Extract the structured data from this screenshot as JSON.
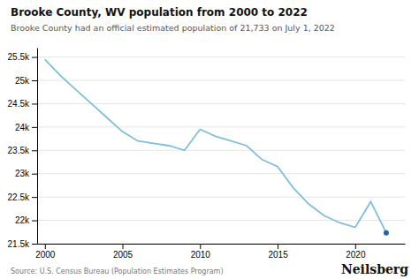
{
  "chart_data": {
    "type": "line",
    "title": "Brooke County, WV population from 2000 to 2022",
    "subtitle": "Brooke County had an official estimated population of 21,733 on July 1, 2022",
    "annotations": [
      "Source: U.S. Census Bureau (Population Estimates Program)",
      "Neilsberg"
    ],
    "x": [
      2000,
      2001,
      2002,
      2003,
      2004,
      2005,
      2006,
      2007,
      2008,
      2009,
      2010,
      2011,
      2012,
      2013,
      2014,
      2015,
      2016,
      2017,
      2018,
      2019,
      2020,
      2021,
      2022
    ],
    "series": [
      {
        "color": "#7fbfdb",
        "values": [
          25447,
          25100,
          24800,
          24500,
          24200,
          23900,
          23700,
          23650,
          23600,
          23500,
          23950,
          23800,
          23700,
          23600,
          23300,
          23150,
          22700,
          22350,
          22100,
          21950,
          21850,
          22400,
          21733
        ]
      },
      {
        "type": "scatter",
        "color": "#2166ac",
        "x": [
          2022
        ],
        "values": [
          21733
        ]
      }
    ],
    "xlim": [
      1999.5,
      2023.2
    ],
    "xticks": [
      2000,
      2005,
      2010,
      2015,
      2020
    ],
    "ylim": [
      21500,
      25700
    ],
    "yticks": [
      {
        "value": 21500,
        "label": "21.5k"
      },
      {
        "value": 22000,
        "label": "22k"
      },
      {
        "value": 22500,
        "label": "22.5k"
      },
      {
        "value": 23000,
        "label": "23k"
      },
      {
        "value": 23500,
        "label": "23.5k"
      },
      {
        "value": 24000,
        "label": "24k"
      },
      {
        "value": 24500,
        "label": "24.5k"
      },
      {
        "value": 25000,
        "label": "25k"
      },
      {
        "value": 25500,
        "label": "25.5k"
      }
    ],
    "grid": "y"
  }
}
